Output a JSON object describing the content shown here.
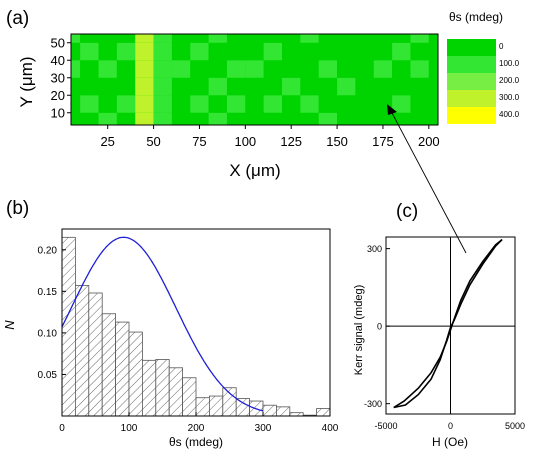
{
  "panel_labels": {
    "a": "(a)",
    "b": "(b)",
    "c": "(c)"
  },
  "chart_data": [
    {
      "panel": "(a)",
      "type": "heatmap",
      "xlabel": "X (μm)",
      "ylabel": "Y (μm)",
      "xlim": [
        5,
        205
      ],
      "ylim": [
        3,
        55
      ],
      "xticks": [
        25,
        50,
        75,
        100,
        125,
        150,
        175,
        200
      ],
      "yticks": [
        10,
        20,
        30,
        40,
        50
      ],
      "colorbar_title": "θs (mdeg)",
      "colorbar_levels": [
        "0",
        "100.0",
        "200.0",
        "300.0",
        "400.0"
      ],
      "colorbar_colors": [
        "#00d400",
        "#33e633",
        "#77ee44",
        "#bff22a",
        "#ffff00"
      ],
      "x": [
        5,
        15,
        25,
        35,
        45,
        55,
        65,
        75,
        85,
        95,
        105,
        115,
        125,
        135,
        145,
        155,
        165,
        175,
        185,
        195,
        205
      ],
      "y": [
        5,
        15,
        25,
        35,
        45,
        55
      ],
      "z": [
        [
          80,
          40,
          120,
          60,
          330,
          130,
          60,
          40,
          110,
          60,
          90,
          40,
          70,
          50,
          100,
          60,
          40,
          80,
          60,
          40,
          70
        ],
        [
          60,
          140,
          80,
          130,
          380,
          170,
          90,
          130,
          60,
          100,
          70,
          110,
          60,
          120,
          80,
          50,
          90,
          60,
          140,
          60,
          50
        ],
        [
          70,
          90,
          40,
          60,
          360,
          110,
          60,
          80,
          120,
          40,
          60,
          80,
          120,
          50,
          60,
          130,
          60,
          40,
          70,
          90,
          40
        ],
        [
          120,
          50,
          130,
          90,
          300,
          160,
          110,
          60,
          70,
          130,
          110,
          60,
          50,
          90,
          120,
          60,
          80,
          110,
          60,
          150,
          60
        ],
        [
          60,
          150,
          70,
          120,
          340,
          120,
          60,
          140,
          90,
          60,
          50,
          130,
          90,
          60,
          70,
          90,
          50,
          60,
          120,
          60,
          80
        ],
        [
          100,
          60,
          90,
          50,
          380,
          100,
          70,
          60,
          110,
          80,
          60,
          50,
          80,
          110,
          60,
          70,
          60,
          90,
          60,
          110,
          60
        ]
      ]
    },
    {
      "panel": "(b)",
      "type": "bar",
      "xlabel": "θs (mdeg)",
      "ylabel": "N",
      "xlim": [
        0,
        400
      ],
      "ylim": [
        0,
        0.225
      ],
      "xticks": [
        0,
        100,
        200,
        300,
        400
      ],
      "yticks": [
        0.05,
        0.1,
        0.15,
        0.2
      ],
      "bin_width": 20,
      "bin_starts": [
        0,
        20,
        40,
        60,
        80,
        100,
        120,
        140,
        160,
        180,
        200,
        220,
        240,
        260,
        280,
        300,
        320,
        340,
        360,
        380
      ],
      "values": [
        0.215,
        0.157,
        0.148,
        0.123,
        0.113,
        0.101,
        0.067,
        0.068,
        0.058,
        0.046,
        0.022,
        0.024,
        0.034,
        0.021,
        0.018,
        0.013,
        0.011,
        0.004,
        0.001,
        0.009
      ],
      "fit": {
        "type": "gaussian",
        "peak": 0.215,
        "center": 92,
        "sigma": 78,
        "color": "#1f1fd6"
      }
    },
    {
      "panel": "(c)",
      "type": "line",
      "xlabel": "H (Oe)",
      "ylabel": "Kerr signal (mdeg)",
      "xlim": [
        -5000,
        5000
      ],
      "ylim": [
        -340,
        345
      ],
      "xticks": [
        -5000,
        0,
        5000
      ],
      "yticks": [
        -300,
        0,
        300
      ],
      "series": [
        {
          "x": [
            -4400,
            -3600,
            -2500,
            -1500,
            -800,
            -300,
            0,
            300,
            800,
            1500,
            2500,
            3500,
            4000
          ],
          "y": [
            -315,
            -290,
            -240,
            -180,
            -120,
            -60,
            -15,
            30,
            100,
            175,
            250,
            315,
            335
          ]
        },
        {
          "x": [
            4000,
            3500,
            2500,
            1500,
            800,
            300,
            0,
            -300,
            -800,
            -1500,
            -2500,
            -3500,
            -4400
          ],
          "y": [
            335,
            310,
            240,
            160,
            85,
            25,
            -5,
            -55,
            -130,
            -205,
            -265,
            -305,
            -315
          ]
        }
      ]
    }
  ]
}
